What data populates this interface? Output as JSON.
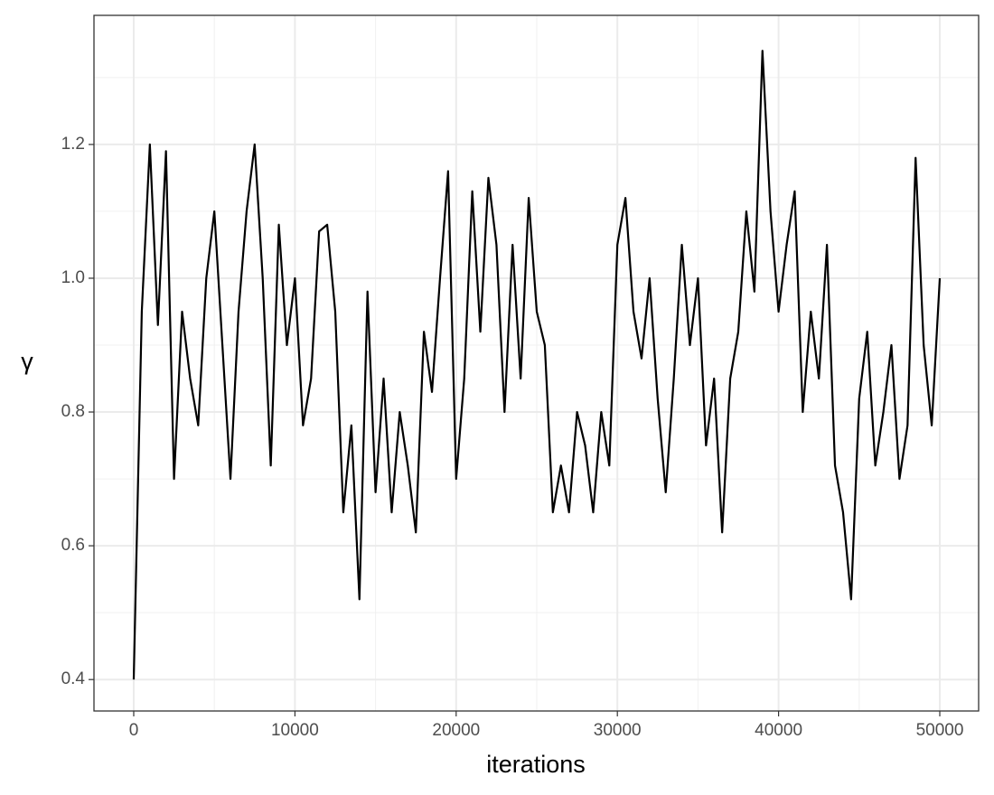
{
  "chart_data": {
    "type": "line",
    "x_label": "iterations",
    "y_label": "γ",
    "x": [
      0,
      500,
      1000,
      1500,
      2000,
      2500,
      3000,
      3500,
      4000,
      4500,
      5000,
      5500,
      6000,
      6500,
      7000,
      7500,
      8000,
      8500,
      9000,
      9500,
      10000,
      10500,
      11000,
      11500,
      12000,
      12500,
      13000,
      13500,
      14000,
      14500,
      15000,
      15500,
      16000,
      16500,
      17000,
      17500,
      18000,
      18500,
      19000,
      19500,
      20000,
      20500,
      21000,
      21500,
      22000,
      22500,
      23000,
      23500,
      24000,
      24500,
      25000,
      25500,
      26000,
      26500,
      27000,
      27500,
      28000,
      28500,
      29000,
      29500,
      30000,
      30500,
      31000,
      31500,
      32000,
      32500,
      33000,
      33500,
      34000,
      34500,
      35000,
      35500,
      36000,
      36500,
      37000,
      37500,
      38000,
      38500,
      39000,
      39500,
      40000,
      40500,
      41000,
      41500,
      42000,
      42500,
      43000,
      43500,
      44000,
      44500,
      45000,
      45500,
      46000,
      46500,
      47000,
      47500,
      48000,
      48500,
      49000,
      49500,
      50000
    ],
    "series": [
      {
        "name": "γ",
        "color": "#000000",
        "values": [
          0.4,
          0.95,
          1.2,
          0.93,
          1.19,
          0.7,
          0.95,
          0.85,
          0.78,
          1.0,
          1.1,
          0.9,
          0.7,
          0.95,
          1.1,
          1.2,
          1.0,
          0.72,
          1.08,
          0.9,
          1.0,
          0.78,
          0.85,
          1.07,
          1.08,
          0.95,
          0.65,
          0.78,
          0.52,
          0.98,
          0.68,
          0.85,
          0.65,
          0.8,
          0.72,
          0.62,
          0.92,
          0.83,
          1.0,
          1.16,
          0.7,
          0.85,
          1.13,
          0.92,
          1.15,
          1.05,
          0.8,
          1.05,
          0.85,
          1.12,
          0.95,
          0.9,
          0.65,
          0.72,
          0.65,
          0.8,
          0.75,
          0.65,
          0.8,
          0.72,
          1.05,
          1.12,
          0.95,
          0.88,
          1.0,
          0.82,
          0.68,
          0.85,
          1.05,
          0.9,
          1.0,
          0.75,
          0.85,
          0.62,
          0.85,
          0.92,
          1.1,
          0.98,
          1.34,
          1.1,
          0.95,
          1.05,
          1.13,
          0.8,
          0.95,
          0.85,
          1.05,
          0.72,
          0.65,
          0.52,
          0.82,
          0.92,
          0.72,
          0.8,
          0.9,
          0.7,
          0.78,
          1.18,
          0.9,
          0.78,
          1.0
        ]
      }
    ],
    "xlim": [
      -2466,
      52410
    ],
    "ylim": [
      0.353,
      1.393
    ],
    "xticks": [
      0,
      10000,
      20000,
      30000,
      40000,
      50000
    ],
    "yticks": [
      0.4,
      0.6,
      0.8,
      {
        "value": 1,
        "label": "1.0"
      },
      1.2
    ],
    "xminor": [
      5000,
      15000,
      25000,
      35000,
      45000
    ],
    "yminor": [
      0.5,
      0.7,
      0.9,
      1.1,
      1.3
    ],
    "grid": true
  }
}
